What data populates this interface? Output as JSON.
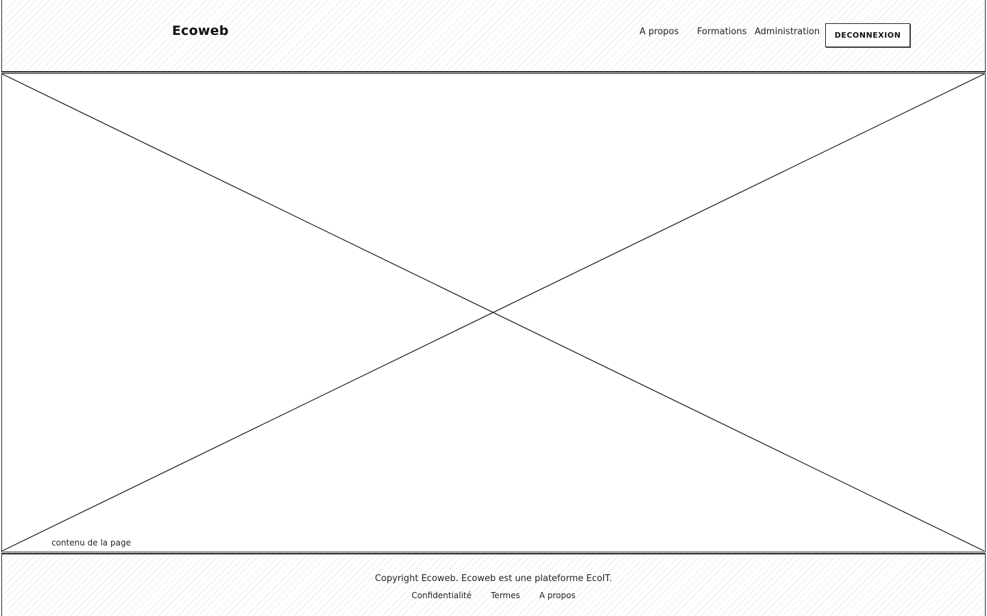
{
  "header": {
    "logo": "Ecoweb",
    "nav": {
      "about": "A propos",
      "trainings": "Formations",
      "admin": "Administration"
    },
    "logout_button": "DECONNEXION"
  },
  "main": {
    "placeholder_label": "contenu de la page",
    "placeholder_image": "image-placeholder-x"
  },
  "footer": {
    "copyright": "Copyright Ecoweb. Ecoweb est une plateforme EcoIT.",
    "links": {
      "privacy": "Confidentialité",
      "terms": "Termes",
      "about": "A propos"
    }
  },
  "colors": {
    "stroke": "#222222",
    "background": "#ffffff"
  }
}
